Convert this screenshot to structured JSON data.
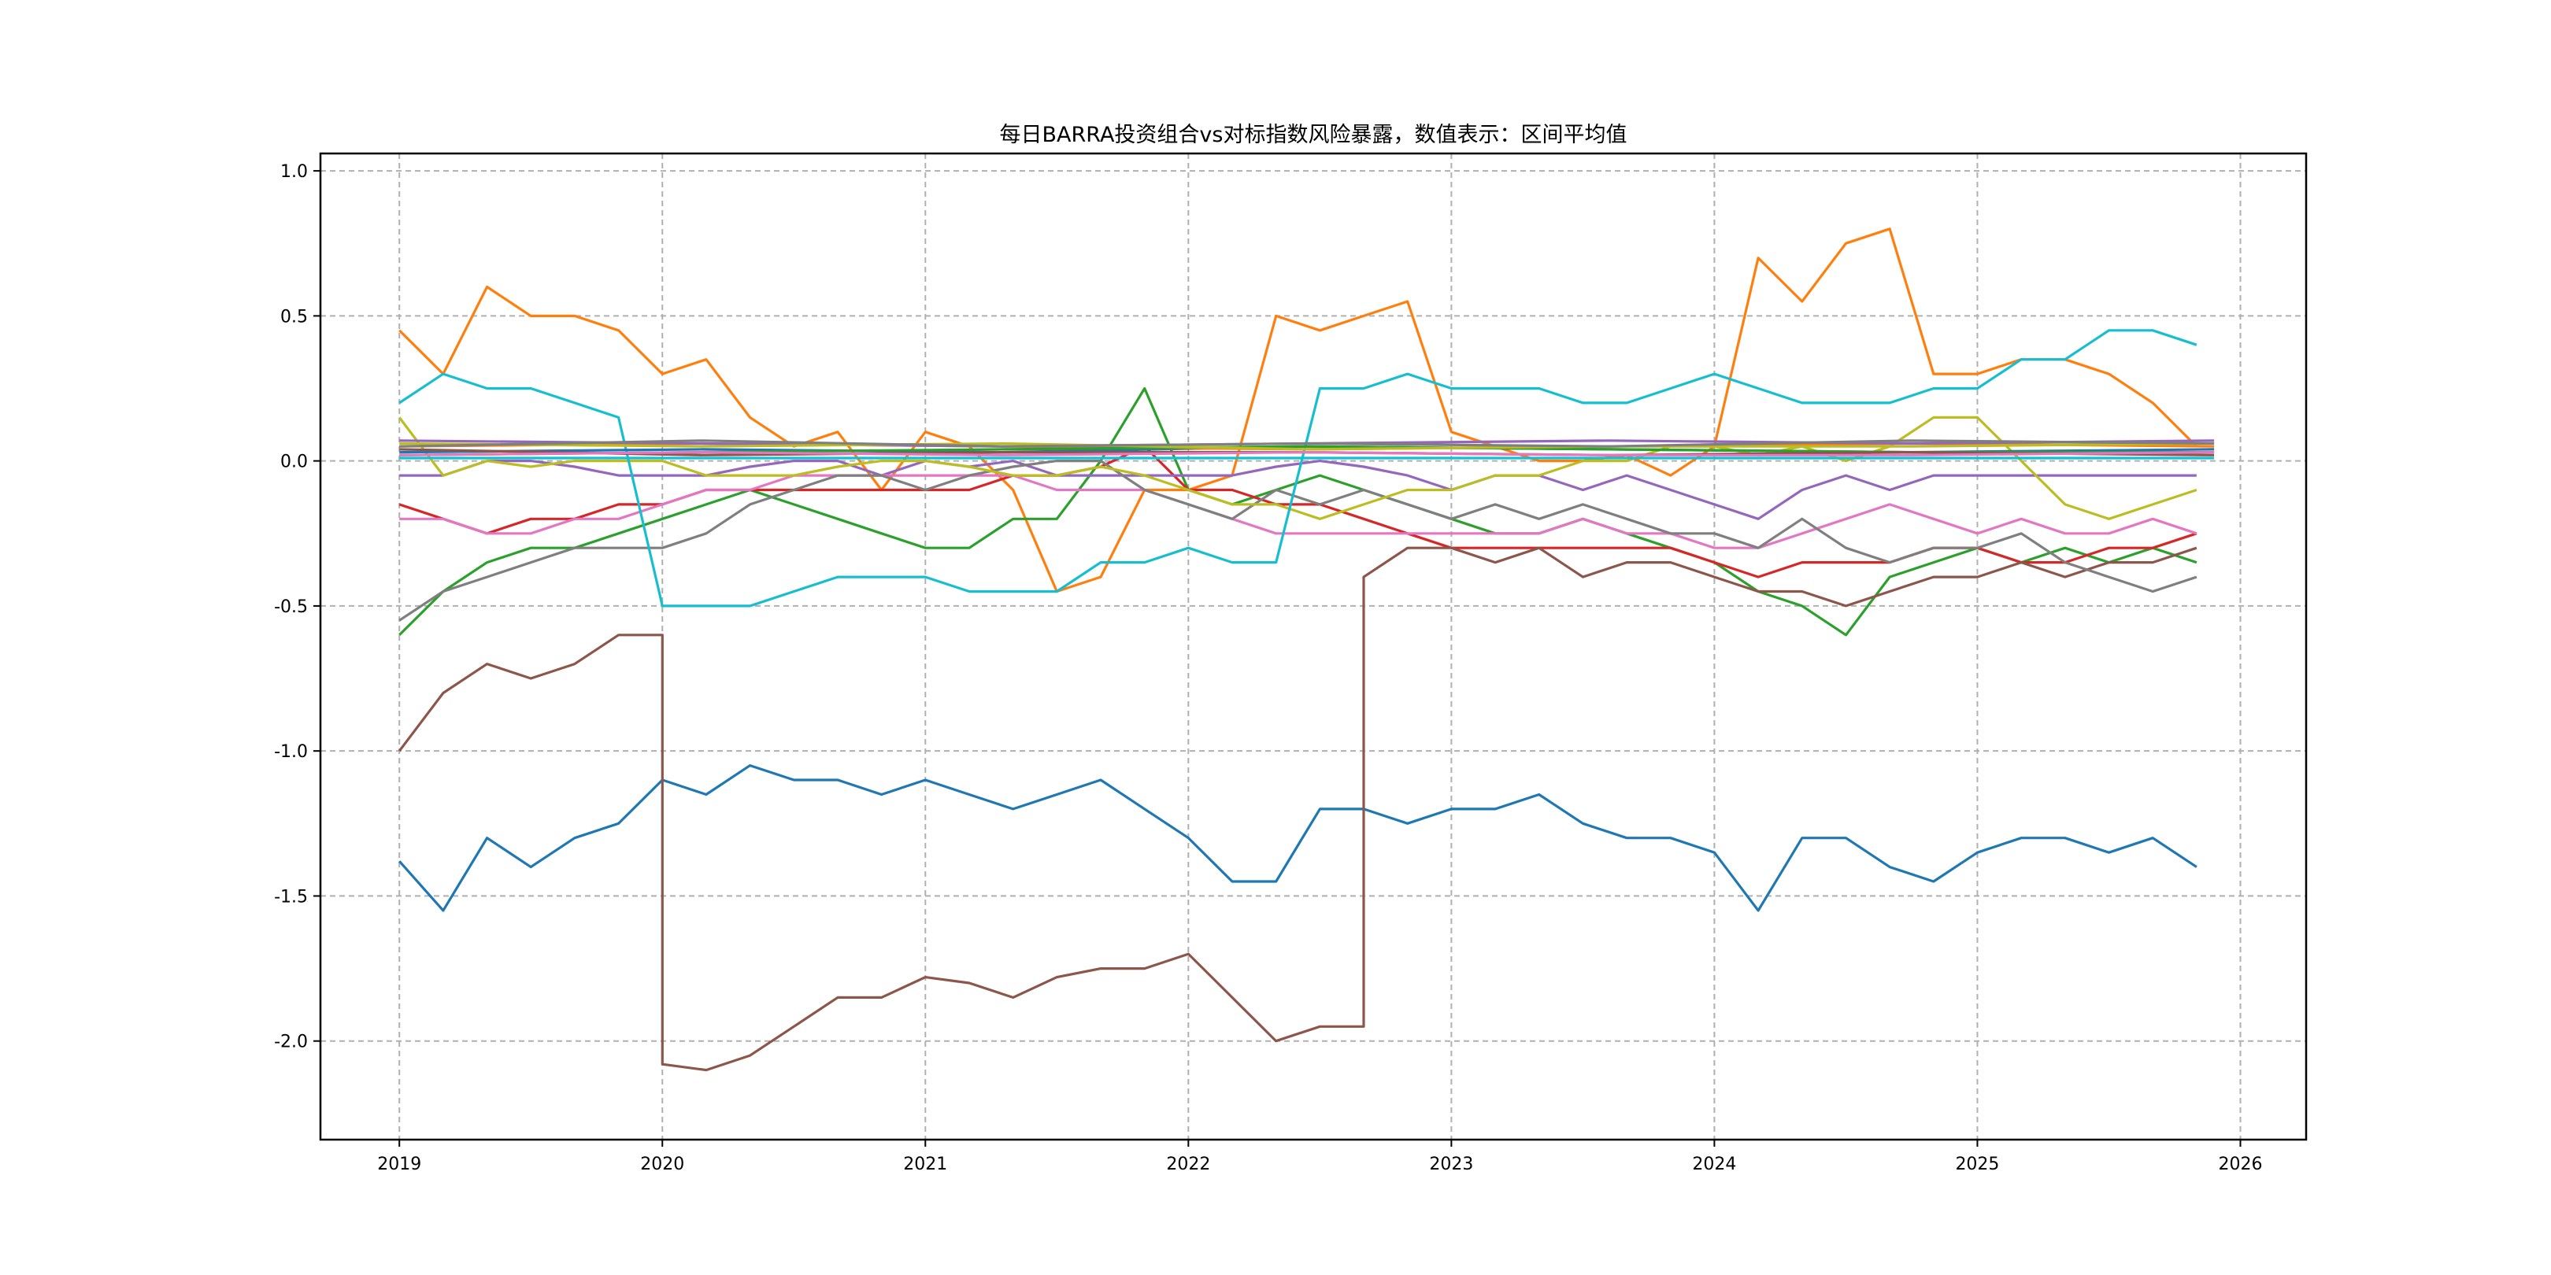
{
  "chart_data": {
    "type": "line",
    "title": "每日BARRA投资组合vs对标指数风险暴露，数值表示：区间平均值",
    "xlabel": "",
    "ylabel": "",
    "xlim": [
      2018.7,
      2026.25
    ],
    "ylim": [
      -2.34,
      1.06
    ],
    "grid": true,
    "x_start": 2019.0,
    "x_step_years": 0.16667,
    "xticks": [
      "2019",
      "2020",
      "2021",
      "2022",
      "2023",
      "2024",
      "2025",
      "2026"
    ],
    "xtick_values": [
      2019,
      2020,
      2021,
      2022,
      2023,
      2024,
      2025,
      2026
    ],
    "yticks": [
      "1.0",
      "0.5",
      "0.0",
      "-0.5",
      "-1.0",
      "-1.5",
      "-2.0"
    ],
    "ytick_values": [
      1.0,
      0.5,
      0.0,
      -0.5,
      -1.0,
      -1.5,
      -2.0
    ],
    "series": [
      {
        "name": "series-blue",
        "color": "#1f77b4",
        "values": [
          -1.38,
          -1.55,
          -1.3,
          -1.4,
          -1.3,
          -1.25,
          -1.1,
          -1.15,
          -1.05,
          -1.1,
          -1.1,
          -1.15,
          -1.1,
          -1.15,
          -1.2,
          -1.15,
          -1.1,
          -1.2,
          -1.3,
          -1.45,
          -1.45,
          -1.2,
          -1.2,
          -1.25,
          -1.2,
          -1.2,
          -1.15,
          -1.25,
          -1.3,
          -1.3,
          -1.35,
          -1.55,
          -1.3,
          -1.3,
          -1.4,
          -1.45,
          -1.35,
          -1.3,
          -1.3,
          -1.35,
          -1.3,
          -1.4
        ]
      },
      {
        "name": "series-orange",
        "color": "#ff7f0e",
        "values": [
          0.45,
          0.3,
          0.6,
          0.5,
          0.5,
          0.45,
          0.3,
          0.35,
          0.15,
          0.05,
          0.1,
          -0.1,
          0.1,
          0.05,
          -0.1,
          -0.45,
          -0.4,
          -0.1,
          -0.1,
          -0.05,
          0.5,
          0.45,
          0.5,
          0.55,
          0.1,
          0.05,
          0.0,
          0.0,
          0.02,
          -0.05,
          0.05,
          0.7,
          0.55,
          0.75,
          0.8,
          0.3,
          0.3,
          0.35,
          0.35,
          0.3,
          0.2,
          0.05
        ]
      },
      {
        "name": "series-green",
        "color": "#2ca02c",
        "values": [
          -0.6,
          -0.45,
          -0.35,
          -0.3,
          -0.3,
          -0.25,
          -0.2,
          -0.15,
          -0.1,
          -0.15,
          -0.2,
          -0.25,
          -0.3,
          -0.3,
          -0.2,
          -0.2,
          0.0,
          0.25,
          -0.1,
          -0.15,
          -0.1,
          -0.05,
          -0.1,
          -0.15,
          -0.2,
          -0.25,
          -0.25,
          -0.2,
          -0.25,
          -0.3,
          -0.35,
          -0.45,
          -0.5,
          -0.6,
          -0.4,
          -0.35,
          -0.3,
          -0.35,
          -0.3,
          -0.35,
          -0.3,
          -0.35
        ]
      },
      {
        "name": "series-red",
        "color": "#d62728",
        "values": [
          -0.15,
          -0.2,
          -0.25,
          -0.2,
          -0.2,
          -0.15,
          -0.15,
          -0.1,
          -0.1,
          -0.1,
          -0.1,
          -0.1,
          -0.1,
          -0.1,
          -0.05,
          -0.05,
          -0.02,
          0.05,
          -0.1,
          -0.1,
          -0.15,
          -0.15,
          -0.2,
          -0.25,
          -0.3,
          -0.3,
          -0.3,
          -0.3,
          -0.3,
          -0.3,
          -0.35,
          -0.4,
          -0.35,
          -0.35,
          -0.35,
          -0.3,
          -0.3,
          -0.35,
          -0.35,
          -0.3,
          -0.3,
          -0.25
        ]
      },
      {
        "name": "series-purple",
        "color": "#9467bd",
        "values": [
          -0.05,
          -0.05,
          0.0,
          0.0,
          -0.02,
          -0.05,
          -0.05,
          -0.05,
          -0.02,
          0.0,
          0.0,
          -0.05,
          0.0,
          -0.02,
          0.0,
          -0.05,
          -0.05,
          -0.05,
          -0.05,
          -0.05,
          -0.02,
          0.0,
          -0.02,
          -0.05,
          -0.1,
          -0.05,
          -0.05,
          -0.1,
          -0.05,
          -0.1,
          -0.15,
          -0.2,
          -0.1,
          -0.05,
          -0.1,
          -0.05,
          -0.05,
          -0.05,
          -0.05,
          -0.05,
          -0.05,
          -0.05
        ]
      },
      {
        "name": "series-brown",
        "color": "#8c564b",
        "values": [
          -1.0,
          -0.8,
          -0.7,
          -0.75,
          -0.7,
          -0.6,
          -2.08,
          -2.1,
          -2.05,
          -1.95,
          -1.85,
          -1.85,
          -1.78,
          -1.8,
          -1.85,
          -1.78,
          -1.75,
          -1.75,
          -1.7,
          -1.85,
          -2.0,
          -1.95,
          -0.4,
          -0.3,
          -0.3,
          -0.35,
          -0.3,
          -0.4,
          -0.35,
          -0.35,
          -0.4,
          -0.45,
          -0.45,
          -0.5,
          -0.45,
          -0.4,
          -0.4,
          -0.35,
          -0.4,
          -0.35,
          -0.35,
          -0.3
        ]
      },
      {
        "name": "series-pink",
        "color": "#e377c2",
        "values": [
          -0.2,
          -0.2,
          -0.25,
          -0.25,
          -0.2,
          -0.2,
          -0.15,
          -0.1,
          -0.1,
          -0.05,
          -0.05,
          -0.05,
          -0.05,
          -0.05,
          -0.05,
          -0.1,
          -0.1,
          -0.1,
          -0.15,
          -0.2,
          -0.25,
          -0.25,
          -0.25,
          -0.25,
          -0.25,
          -0.25,
          -0.25,
          -0.2,
          -0.25,
          -0.25,
          -0.3,
          -0.3,
          -0.25,
          -0.2,
          -0.15,
          -0.2,
          -0.25,
          -0.2,
          -0.25,
          -0.25,
          -0.2,
          -0.25
        ]
      },
      {
        "name": "series-gray",
        "color": "#7f7f7f",
        "values": [
          -0.55,
          -0.45,
          -0.4,
          -0.35,
          -0.3,
          -0.3,
          -0.3,
          -0.25,
          -0.15,
          -0.1,
          -0.05,
          -0.05,
          -0.1,
          -0.05,
          -0.02,
          0.0,
          0.0,
          -0.1,
          -0.15,
          -0.2,
          -0.1,
          -0.15,
          -0.1,
          -0.15,
          -0.2,
          -0.15,
          -0.2,
          -0.15,
          -0.2,
          -0.25,
          -0.25,
          -0.3,
          -0.2,
          -0.3,
          -0.35,
          -0.3,
          -0.3,
          -0.25,
          -0.35,
          -0.4,
          -0.45,
          -0.4
        ]
      },
      {
        "name": "series-olive",
        "color": "#bcbd22",
        "values": [
          0.15,
          -0.05,
          0.0,
          -0.02,
          0.0,
          0.0,
          0.0,
          -0.05,
          -0.05,
          -0.05,
          -0.02,
          0.0,
          0.0,
          -0.02,
          -0.05,
          -0.05,
          -0.02,
          -0.05,
          -0.1,
          -0.15,
          -0.15,
          -0.2,
          -0.15,
          -0.1,
          -0.1,
          -0.05,
          -0.05,
          0.0,
          0.0,
          0.05,
          0.05,
          0.02,
          0.05,
          0.0,
          0.05,
          0.15,
          0.15,
          0.0,
          -0.15,
          -0.2,
          -0.15,
          -0.1
        ]
      },
      {
        "name": "series-cyan",
        "color": "#17becf",
        "values": [
          0.2,
          0.3,
          0.25,
          0.25,
          0.2,
          0.15,
          -0.5,
          -0.5,
          -0.5,
          -0.45,
          -0.4,
          -0.4,
          -0.4,
          -0.45,
          -0.45,
          -0.45,
          -0.35,
          -0.35,
          -0.3,
          -0.35,
          -0.35,
          0.25,
          0.25,
          0.3,
          0.25,
          0.25,
          0.25,
          0.2,
          0.2,
          0.25,
          0.3,
          0.25,
          0.2,
          0.2,
          0.2,
          0.25,
          0.25,
          0.35,
          0.35,
          0.45,
          0.45,
          0.4
        ]
      },
      {
        "name": "cluster-1",
        "color": "#1f77b4",
        "values": [
          0.03,
          0.04,
          0.03,
          0.05,
          0.04,
          0.03,
          0.04
        ]
      },
      {
        "name": "cluster-2",
        "color": "#ff7f0e",
        "values": [
          0.05,
          0.06,
          0.05,
          0.04,
          0.05,
          0.06,
          0.05
        ]
      },
      {
        "name": "cluster-3",
        "color": "#2ca02c",
        "values": [
          0.02,
          0.03,
          0.04,
          0.05,
          0.04,
          0.03,
          0.03
        ]
      },
      {
        "name": "cluster-4",
        "color": "#9467bd",
        "values": [
          0.07,
          0.06,
          0.05,
          0.06,
          0.07,
          0.06,
          0.07
        ]
      },
      {
        "name": "cluster-5",
        "color": "#8c564b",
        "values": [
          0.04,
          0.02,
          0.03,
          0.03,
          0.02,
          0.03,
          0.02
        ]
      },
      {
        "name": "cluster-6",
        "color": "#bcbd22",
        "values": [
          0.06,
          0.05,
          0.06,
          0.04,
          0.05,
          0.05,
          0.06
        ]
      },
      {
        "name": "cluster-7",
        "color": "#7f7f7f",
        "values": [
          0.05,
          0.07,
          0.05,
          0.06,
          0.05,
          0.07,
          0.06
        ]
      },
      {
        "name": "cluster-8",
        "color": "#e377c2",
        "values": [
          0.02,
          0.03,
          0.02,
          0.03,
          0.02,
          0.02,
          0.03
        ]
      },
      {
        "name": "cluster-9",
        "color": "#17becf",
        "values": [
          0.01,
          0.01,
          0.01,
          0.01,
          0.01,
          0.01,
          0.01
        ]
      }
    ]
  }
}
